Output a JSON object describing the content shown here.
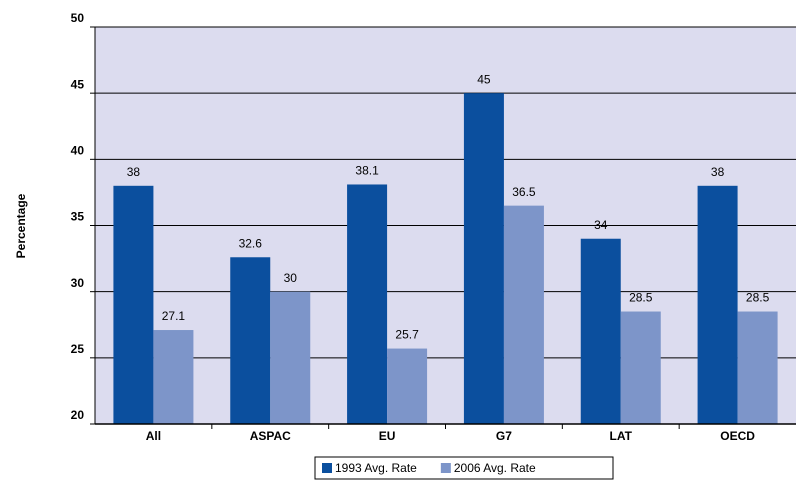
{
  "chart_data": {
    "type": "bar",
    "y_axis_label": "Percentage",
    "categories": [
      "All",
      "ASPAC",
      "EU",
      "G7",
      "LAT",
      "OECD"
    ],
    "series": [
      {
        "name": "1993 Avg. Rate",
        "color": "#0b4f9e",
        "values": [
          38,
          32.6,
          38.1,
          45,
          34,
          38
        ]
      },
      {
        "name": "2006 Avg. Rate",
        "color": "#7d95c9",
        "values": [
          27.1,
          30,
          25.7,
          36.5,
          28.5,
          28.5
        ]
      }
    ],
    "ylim": [
      20,
      50
    ],
    "yticks": [
      20,
      25,
      30,
      35,
      40,
      45,
      50
    ],
    "grid": true,
    "legend": "bottom"
  }
}
